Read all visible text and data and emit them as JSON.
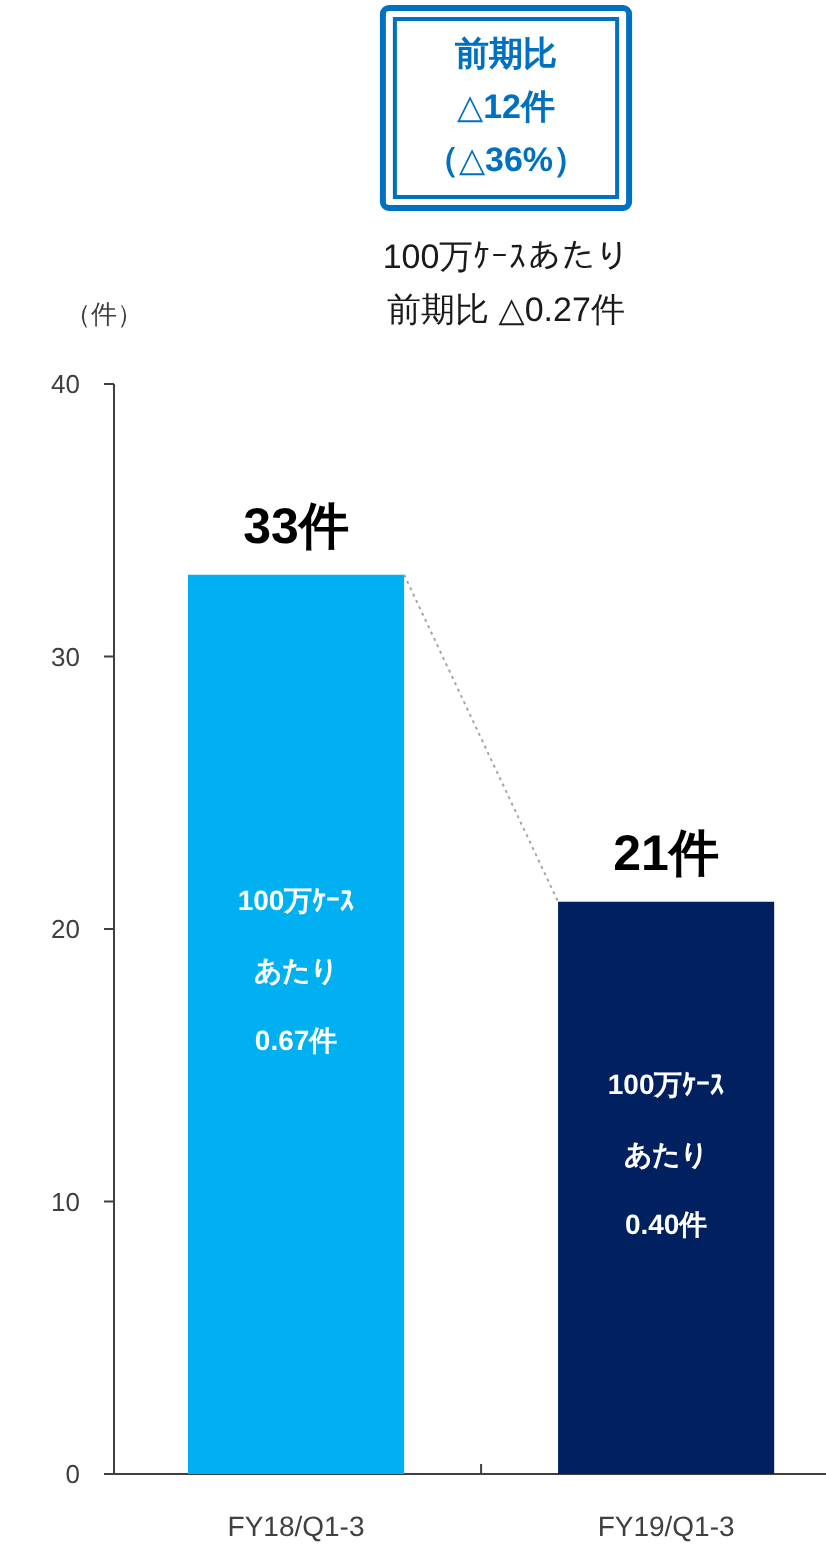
{
  "chart_data": {
    "type": "bar",
    "ylabel": "（件）",
    "categories": [
      "FY18/Q1-3",
      "FY19/Q1-3"
    ],
    "values": [
      33,
      21
    ],
    "colors": [
      "#00b0f0",
      "#002060"
    ],
    "value_labels": [
      "33件",
      "21件"
    ],
    "ylim": [
      0,
      40
    ],
    "yticks": [
      0,
      10,
      20,
      30,
      40
    ],
    "annotations": [
      "前期比",
      "△12件",
      "（△36%）",
      "100万ｹｰｽあたり",
      "前期比 △0.27件",
      "100万ｹｰｽ",
      "あたり",
      "0.67件",
      "100万ｹｰｽ",
      "あたり",
      "0.40件"
    ]
  }
}
